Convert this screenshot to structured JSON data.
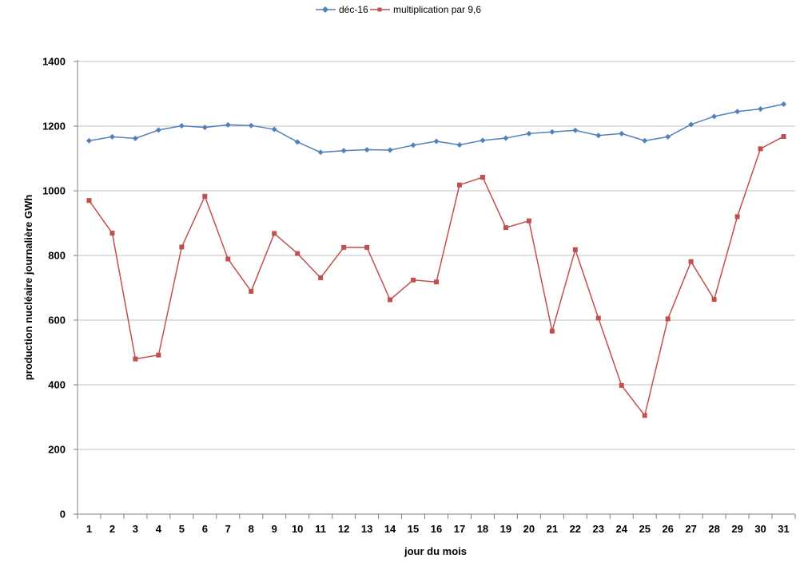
{
  "chart_data": {
    "type": "line",
    "title": "",
    "xlabel": "jour du mois",
    "ylabel": "production nucléaire journalière GWh",
    "x": [
      1,
      2,
      3,
      4,
      5,
      6,
      7,
      8,
      9,
      10,
      11,
      12,
      13,
      14,
      15,
      16,
      17,
      18,
      19,
      20,
      21,
      22,
      23,
      24,
      25,
      26,
      27,
      28,
      29,
      30,
      31
    ],
    "ylim": [
      0,
      1400
    ],
    "yticks": [
      0,
      200,
      400,
      600,
      800,
      1000,
      1200,
      1400
    ],
    "grid": true,
    "legend_position": "top",
    "series": [
      {
        "name": "déc-16",
        "color": "#4F81BD",
        "marker": "diamond",
        "values": [
          1155,
          1167,
          1162,
          1188,
          1201,
          1196,
          1204,
          1202,
          1190,
          1151,
          1119,
          1124,
          1127,
          1126,
          1141,
          1153,
          1142,
          1156,
          1163,
          1177,
          1182,
          1187,
          1171,
          1177,
          1155,
          1167,
          1205,
          1230,
          1245,
          1253,
          1268
        ]
      },
      {
        "name": "multiplication par 9,6",
        "color": "#C0504D",
        "marker": "square",
        "values": [
          970,
          869,
          480,
          492,
          826,
          983,
          789,
          689,
          868,
          806,
          731,
          825,
          825,
          663,
          724,
          718,
          1018,
          1042,
          886,
          907,
          566,
          818,
          606,
          398,
          305,
          604,
          781,
          664,
          920,
          1130,
          1168
        ]
      }
    ]
  }
}
